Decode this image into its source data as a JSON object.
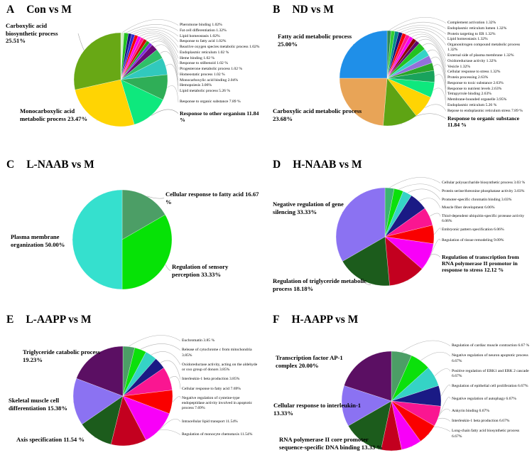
{
  "figure": {
    "background": "#ffffff"
  },
  "chart_data": [
    {
      "type": "pie",
      "panel": "A",
      "title": "Con vs M",
      "labels": [
        "Pheromone binding",
        "Fat cell differentiation",
        "Lipid homeostasis",
        "Response to fatty acid",
        "Reactive oxygen species metabolic process",
        "Endoplasmic reticulum",
        "Heme binding",
        "Response to stilbenoid",
        "Progesterone metabolic process",
        "Homeostatic process",
        "Monocarboxylic acid binding",
        "Hemopoiesis",
        "Lipid metabolic process",
        "Response to organic substance",
        "Response to other organism",
        "Monocarboxylic acid metabolic process",
        "Carboxylic acid biosynthetic process"
      ],
      "values": [
        1.02,
        1.32,
        1.02,
        1.02,
        1.02,
        1.02,
        1.02,
        1.02,
        1.02,
        1.02,
        2.04,
        3.06,
        5.26,
        7.89,
        11.84,
        23.47,
        25.51
      ],
      "colors": [
        "#cdeec4",
        "#23c220",
        "#15157d",
        "#2a2ad0",
        "#f40000",
        "#f400f4",
        "#ff1699",
        "#d40000",
        "#1fa51f",
        "#7d2ce0",
        "#690b75",
        "#2fbf69",
        "#31c9bd",
        "#2fae57",
        "#0ee87d",
        "#ffd403",
        "#68a815"
      ]
    },
    {
      "type": "pie",
      "panel": "B",
      "title": "ND vs M",
      "labels": [
        "Complement activation",
        "Endoplasmic reticulum lumen",
        "Protein targeting to ER",
        "Lipid homeostasis",
        "Organonitrogen compound metabolic process",
        "External side of plasma membrane",
        "Oxidoreductase activity",
        "Vesicle",
        "Cellular response to stress",
        "Protein processing",
        "Response to toxic substance",
        "Response to nutrient levels",
        "Tetrapyrrole binding",
        "Membrane-bounded organelle",
        "Endoplasmic reticulum",
        "Repose to endoplasmic reticulum stress",
        "Response to organic substance",
        "Carboxylic acid metabolic process",
        "Fatty acid metabolic process"
      ],
      "values": [
        1.32,
        1.32,
        1.32,
        1.32,
        1.32,
        1.32,
        1.32,
        1.32,
        1.32,
        2.63,
        2.63,
        2.63,
        2.63,
        3.95,
        5.26,
        7.89,
        11.84,
        23.68,
        25.0
      ],
      "colors": [
        "#2e8b57",
        "#32cd32",
        "#008b8b",
        "#16167a",
        "#f40000",
        "#ff1699",
        "#f400f4",
        "#8b0000",
        "#5f0a6e",
        "#23c220",
        "#35d3c6",
        "#9370db",
        "#2aa62a",
        "#19a35c",
        "#0ee87d",
        "#ffd403",
        "#5ea414",
        "#e8a457",
        "#1f8fe8"
      ]
    },
    {
      "type": "pie",
      "panel": "C",
      "title": "L-NAAB vs M",
      "labels": [
        "Cellular response to fatty acid",
        "Regulation of sensory perception",
        "Plasma membrane organization"
      ],
      "values": [
        16.67,
        33.33,
        50.0
      ],
      "colors": [
        "#4c9e66",
        "#06e206",
        "#35e0ce"
      ]
    },
    {
      "type": "pie",
      "panel": "D",
      "title": "H-NAAB vs M",
      "labels": [
        "Cellular polysaccharide biosynthetic process",
        "Protein serine/threonine phosphatase activity",
        "Promoter-specific chromatin binding",
        "Muscle fiber development",
        "Thiol-dependent ubiquitin-specific protease activity",
        "Embryonic pattern specification",
        "Regulation of tissue remodeling",
        "Regulation of transcription from RNA polymerase II promotor in response to stress",
        "Regulation of triglyceride metabolic process",
        "Negative regulation of gene silencing"
      ],
      "values": [
        3.03,
        3.03,
        3.03,
        6.06,
        6.06,
        6.06,
        9.09,
        12.12,
        18.18,
        33.33
      ],
      "colors": [
        "#3cb371",
        "#0be00b",
        "#35d3c6",
        "#1a1a85",
        "#fa1691",
        "#fa0000",
        "#f800f8",
        "#c3001f",
        "#1c5c1c",
        "#8b72f2"
      ]
    },
    {
      "type": "pie",
      "panel": "E",
      "title": "L-AAPP vs M",
      "labels": [
        "Euchromatin",
        "Release of cytochrome c from mitochondria",
        "Oxidoreductase activity, acting on the aldehyde or oxo group of donors",
        "Interleukin-1 beta production",
        "Cellular response to fatty acid",
        "Negative regulation of cysteine-type endopeptidase activity involved in apoptotic process",
        "Intracellular lipid transport",
        "Regulation of monocyte chemotaxis",
        "Axis specification",
        "Skeletal muscle cell differentiation",
        "Triglyceride catabolic process"
      ],
      "values": [
        3.85,
        3.85,
        3.85,
        3.85,
        7.69,
        7.69,
        11.54,
        11.54,
        11.54,
        15.38,
        19.23
      ],
      "colors": [
        "#4c9e66",
        "#0be00b",
        "#35d3c6",
        "#1a1a85",
        "#fa1691",
        "#fa0000",
        "#f800f8",
        "#c3001f",
        "#1c5c1c",
        "#8b72f2",
        "#5b0f63"
      ]
    },
    {
      "type": "pie",
      "panel": "F",
      "title": "H-AAPP vs M",
      "labels": [
        "Regulation of cardiac muscle contraction",
        "Negative regulation of neuron apoptotic process",
        "Positive regulation of ERK1 and ERK 2 cascade",
        "Regulation of epithelial cell proliferation",
        "Negative regulation of autophagy",
        "Ankyrin binding",
        "Interleukin-1 beta production",
        "Long-chain fatty acid biosynthetic process",
        "RNA polymerase II core promoter sequence-specific DNA binding",
        "Cellular response to interleukin-1",
        "Transcription factor AP-1 complex"
      ],
      "values": [
        6.67,
        6.67,
        6.67,
        6.67,
        6.67,
        6.67,
        6.67,
        6.67,
        13.33,
        13.33,
        20.0
      ],
      "colors": [
        "#4c9e66",
        "#0be00b",
        "#35d3c6",
        "#1a1a85",
        "#fa1691",
        "#fa0000",
        "#f800f8",
        "#c3001f",
        "#1c5c1c",
        "#8b72f2",
        "#5b0f63"
      ]
    }
  ],
  "panels": [
    {
      "letter": "A",
      "title": "Con vs M",
      "left_labels": [
        {
          "text": "Carboxylic acid biosynthetic process 25.51%",
          "slice": 16
        },
        {
          "text": "Monocarboxylic acid metabolic process 23.47%",
          "slice": 15
        }
      ],
      "right_labels": [
        {
          "text": "Pheromone binding 1.02%",
          "slice": 0
        },
        {
          "text": "Fat cell differentiation 1.32%",
          "slice": 1
        },
        {
          "text": "Lipid homeostasis 1.02%",
          "slice": 2
        },
        {
          "text": "Response to fatty acid 1.02%",
          "slice": 3
        },
        {
          "text": "Reactive oxygen species metabolic process 1.02%",
          "slice": 4
        },
        {
          "text": "Endoplasmic reticulum 1.02 %",
          "slice": 5
        },
        {
          "text": "Heme binding 1.02 %",
          "slice": 6
        },
        {
          "text": "Response to stilbenoid 1.02 %",
          "slice": 7
        },
        {
          "text": "Progesterone metabolic process 1.02 %",
          "slice": 8
        },
        {
          "text": "Homeostatic process 1.02 %",
          "slice": 9
        },
        {
          "text": "Monocarboxylic acid binding 2.04%",
          "slice": 10
        },
        {
          "text": "Hemopoiesis 3.06%",
          "slice": 11
        },
        {
          "text": "Lipid metabolic process 5.26 %",
          "slice": 12
        },
        {
          "text": "Response to organic substance 7.89 %",
          "slice": 13,
          "gap": true
        },
        {
          "text": "Response to other organism 11.84 %",
          "slice": 14,
          "bold": true
        }
      ]
    },
    {
      "letter": "B",
      "title": "ND vs M",
      "left_labels": [
        {
          "text": "Fatty acid metabolic process 25.00%",
          "slice": 18
        },
        {
          "text": "Carboxylic acid metabolic process 23.68%",
          "slice": 17
        }
      ],
      "right_labels": [
        {
          "text": "Complement activation 1.32%",
          "slice": 0
        },
        {
          "text": "Endoplasmic reticulum lumen 1.32%",
          "slice": 1
        },
        {
          "text": "Protein targeting to ER 1.32%",
          "slice": 2
        },
        {
          "text": "Lipid homeostasis 1.32%",
          "slice": 3
        },
        {
          "text": "Organonitrogen compound metabolic process 1.32%",
          "slice": 4
        },
        {
          "text": "External side of plasma membrane 1.32%",
          "slice": 5
        },
        {
          "text": "Oxidoreductase activity 1.32%",
          "slice": 6
        },
        {
          "text": "Vesicle 1.32%",
          "slice": 7
        },
        {
          "text": "Cellular response to stress 1.32%",
          "slice": 8
        },
        {
          "text": "Protein processing 2.63%",
          "slice": 9
        },
        {
          "text": "Response to toxic substance 2.63%",
          "slice": 10
        },
        {
          "text": "Response to nutrient levels 2.63%",
          "slice": 11
        },
        {
          "text": "Tetrapyrrole binding 2.63%",
          "slice": 12
        },
        {
          "text": "Membrane-bounded organelle 3.95%",
          "slice": 13
        },
        {
          "text": "Endoplasmic reticulum 5.26 %",
          "slice": 14
        },
        {
          "text": "Repose to endoplasmic reticulum stress 7.89 %",
          "slice": 15
        },
        {
          "text": "Response to organic substance 11.84 %",
          "slice": 16,
          "bold": true
        }
      ]
    },
    {
      "letter": "C",
      "title": "L-NAAB vs M",
      "left_labels": [
        {
          "text": "Plasma membrane organization 50.00%",
          "slice": 2
        }
      ],
      "right_big_labels": [
        {
          "text": "Cellular response to fatty acid 16.67 %",
          "slice": 0
        },
        {
          "text": "Regulation of sensory perception 33.33%",
          "slice": 1
        }
      ],
      "right_labels": []
    },
    {
      "letter": "D",
      "title": "H-NAAB vs M",
      "left_labels": [
        {
          "text": "Negative regulation of gene silencing 33.33%",
          "slice": 9
        },
        {
          "text": "Regulation of triglyceride metabolic process 18.18%",
          "slice": 8
        }
      ],
      "right_labels": [
        {
          "text": "Cellular polysaccharide biosynthetic process 3.03 %",
          "slice": 0
        },
        {
          "text": "Protein serine/threonine phosphatase activity 3.03%",
          "slice": 1
        },
        {
          "text": "Promoter-specific chromatin binding 3.03%",
          "slice": 2
        },
        {
          "text": "Muscle fiber development 6.06%",
          "slice": 3
        },
        {
          "text": "Thiol-dependent ubiquitin-specific protease activity 6.06%",
          "slice": 4
        },
        {
          "text": "Embryonic pattern specification 6.06%",
          "slice": 5
        },
        {
          "text": "Regulation of tissue remodeling 9.09%",
          "slice": 6,
          "gap": true
        },
        {
          "text": "Regulation of transcription from RNA polymerase II promotor in response to stress 12.12 %",
          "slice": 7,
          "bold": true
        }
      ]
    },
    {
      "letter": "E",
      "title": "L-AAPP vs M",
      "left_labels": [
        {
          "text": "Triglyceride catabolic process 19.23%",
          "slice": 10
        },
        {
          "text": "Skeletal muscle cell differentiation 15.38%",
          "slice": 9
        },
        {
          "text": "Axis specification 11.54 %",
          "slice": 8
        }
      ],
      "right_labels": [
        {
          "text": "Euchromatin 3.85 %",
          "slice": 0
        },
        {
          "text": "Release of cytochrome c from mitochondria 3.85%",
          "slice": 1
        },
        {
          "text": "Oxidoreductase activity, acting on the aldehyde or oxo group of donors 3.85%",
          "slice": 2
        },
        {
          "text": "Interleukin-1 beta production 3.85%",
          "slice": 3
        },
        {
          "text": "Cellular response to fatty acid 7.69%",
          "slice": 4
        },
        {
          "text": "Negative regulation of cysteine-type endopeptidase activity involved in apoptotic process 7.69%",
          "slice": 5
        },
        {
          "text": "Intracellular lipid transport 11.54%",
          "slice": 6,
          "gap": true
        },
        {
          "text": "Regulation of monocyte chemotaxis 11.54%",
          "slice": 7,
          "gap": true
        }
      ]
    },
    {
      "letter": "F",
      "title": "H-AAPP vs M",
      "left_labels": [
        {
          "text": "Transcription factor AP-1 complex 20.00%",
          "slice": 10
        },
        {
          "text": "Cellular response to interleukin-1  13.33%",
          "slice": 9
        },
        {
          "text": "RNA polymerase II core promoter sequence-specific DNA binding 13.33 %",
          "slice": 8
        }
      ],
      "right_labels": [
        {
          "text": "Regulation of cardiac muscle contraction 6.67 %",
          "slice": 0
        },
        {
          "text": "Negative regulation of neuron apoptotic process 6.67%",
          "slice": 1
        },
        {
          "text": "Positive regulation of ERK1 and ERK 2 cascade 6.67%",
          "slice": 2
        },
        {
          "text": "Regulation of epithelial cell proliferation 6.67%",
          "slice": 3
        },
        {
          "text": "Negative regulation of autophagy 6.67%",
          "slice": 4,
          "gap": true
        },
        {
          "text": "Ankyrin binding 6.67%",
          "slice": 5,
          "gap": true
        },
        {
          "text": "Interleukin-1 beta production 6.67%",
          "slice": 6
        },
        {
          "text": "Long-chain fatty acid biosynthetic process 6.67%",
          "slice": 7
        }
      ]
    }
  ]
}
